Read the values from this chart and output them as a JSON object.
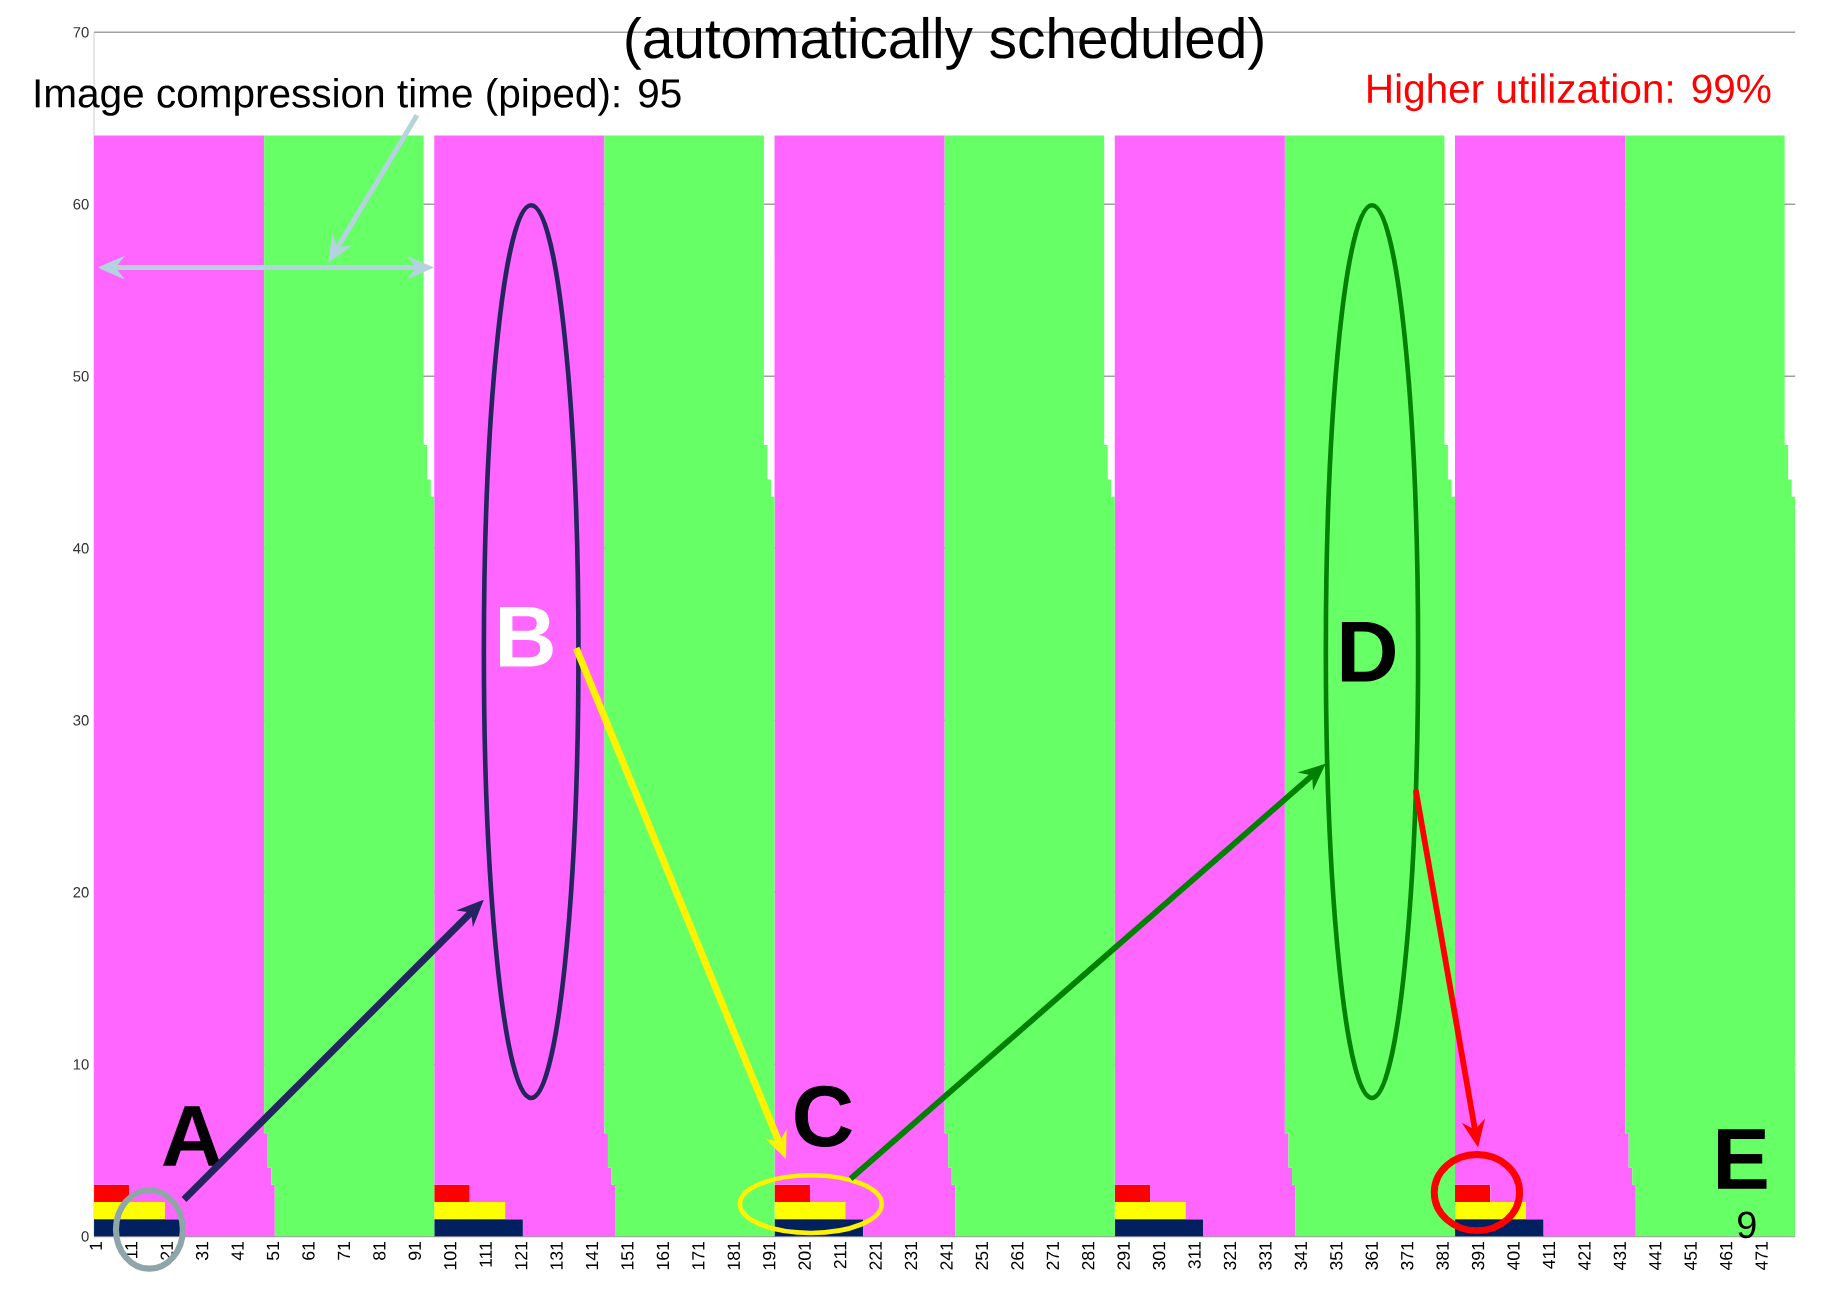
{
  "chart_data": {
    "type": "area",
    "stacked": true,
    "title": "(automatically scheduled)",
    "xlim": [
      0.5,
      480.5
    ],
    "ylim": [
      0,
      70
    ],
    "xticks": [
      1,
      11,
      21,
      31,
      41,
      51,
      61,
      71,
      81,
      91,
      101,
      111,
      121,
      131,
      141,
      151,
      161,
      171,
      181,
      191,
      201,
      211,
      221,
      231,
      241,
      251,
      261,
      271,
      281,
      291,
      301,
      311,
      321,
      331,
      341,
      351,
      361,
      371,
      381,
      391,
      401,
      411,
      421,
      431,
      441,
      451,
      461,
      471
    ],
    "yticks": [
      0,
      10,
      20,
      30,
      40,
      50,
      60,
      70
    ],
    "grid": "y",
    "x": [
      0.5,
      10.5,
      10.5,
      20.5,
      20.5,
      25.5,
      25.5,
      48.5,
      48.5,
      49.5,
      49.5,
      50.5,
      50.5,
      51.5,
      51.5,
      93.5,
      93.5,
      94.5,
      94.5,
      95.5,
      95.5,
      96.5,
      96.5,
      106.5,
      106.5,
      116.5,
      116.5,
      121.5,
      121.5,
      144.5,
      144.5,
      145.5,
      145.5,
      146.5,
      146.5,
      147.5,
      147.5,
      189.5,
      189.5,
      190.5,
      190.5,
      191.5,
      191.5,
      192.5,
      192.5,
      202.5,
      202.5,
      212.5,
      212.5,
      217.5,
      217.5,
      240.5,
      240.5,
      241.5,
      241.5,
      242.5,
      242.5,
      243.5,
      243.5,
      285.5,
      285.5,
      286.5,
      286.5,
      287.5,
      287.5,
      288.5,
      288.5,
      298.5,
      298.5,
      308.5,
      308.5,
      313.5,
      313.5,
      336.5,
      336.5,
      337.5,
      337.5,
      338.5,
      338.5,
      339.5,
      339.5,
      381.5,
      381.5,
      382.5,
      382.5,
      383.5,
      383.5,
      384.5,
      384.5,
      394.5,
      394.5,
      404.5,
      404.5,
      409.5,
      409.5,
      432.5,
      432.5,
      433.5,
      433.5,
      434.5,
      434.5,
      435.5,
      435.5,
      477.5,
      477.5,
      478.5,
      478.5,
      479.5,
      479.5,
      480.5
    ],
    "series": [
      {
        "color": "#002060",
        "values": [
          1,
          1,
          1,
          1,
          1,
          1,
          null,
          null,
          null,
          null,
          null,
          null,
          null,
          null,
          null,
          null,
          null,
          null,
          null,
          null,
          null,
          null,
          1,
          1,
          1,
          1,
          1,
          1,
          null,
          null,
          null,
          null,
          null,
          null,
          null,
          null,
          null,
          null,
          null,
          null,
          null,
          null,
          null,
          null,
          1,
          1,
          1,
          1,
          1,
          1,
          null,
          null,
          null,
          null,
          null,
          null,
          null,
          null,
          null,
          null,
          null,
          null,
          null,
          null,
          null,
          null,
          1,
          1,
          1,
          1,
          1,
          1,
          null,
          null,
          null,
          null,
          null,
          null,
          null,
          null,
          null,
          null,
          null,
          null,
          null,
          null,
          null,
          null,
          1,
          1,
          1,
          1,
          1,
          1,
          null,
          null,
          null,
          null,
          null,
          null,
          null,
          null,
          null,
          null,
          null,
          null,
          null,
          null,
          null,
          null
        ]
      },
      {
        "color": "#ffff00",
        "values": [
          1,
          1,
          1,
          1,
          null,
          null,
          null,
          null,
          null,
          null,
          null,
          null,
          null,
          null,
          null,
          null,
          null,
          null,
          null,
          null,
          null,
          null,
          1,
          1,
          1,
          1,
          null,
          null,
          null,
          null,
          null,
          null,
          null,
          null,
          null,
          null,
          null,
          null,
          null,
          null,
          null,
          null,
          null,
          null,
          1,
          1,
          1,
          1,
          null,
          null,
          null,
          null,
          null,
          null,
          null,
          null,
          null,
          null,
          null,
          null,
          null,
          null,
          null,
          null,
          null,
          null,
          1,
          1,
          1,
          1,
          null,
          null,
          null,
          null,
          null,
          null,
          null,
          null,
          null,
          null,
          null,
          null,
          null,
          null,
          null,
          null,
          null,
          null,
          1,
          1,
          1,
          1,
          null,
          null,
          null,
          null,
          null,
          null,
          null,
          null,
          null,
          null,
          null,
          null,
          null,
          null,
          null,
          null,
          null,
          null
        ]
      },
      {
        "color": "#ff0000",
        "values": [
          1,
          1,
          null,
          null,
          null,
          null,
          null,
          null,
          null,
          null,
          null,
          null,
          null,
          null,
          null,
          null,
          null,
          null,
          null,
          null,
          null,
          null,
          1,
          1,
          null,
          null,
          null,
          null,
          null,
          null,
          null,
          null,
          null,
          null,
          null,
          null,
          null,
          null,
          null,
          null,
          null,
          null,
          null,
          null,
          1,
          1,
          null,
          null,
          null,
          null,
          null,
          null,
          null,
          null,
          null,
          null,
          null,
          null,
          null,
          null,
          null,
          null,
          null,
          null,
          null,
          null,
          1,
          1,
          null,
          null,
          null,
          null,
          null,
          null,
          null,
          null,
          null,
          null,
          null,
          null,
          null,
          null,
          null,
          null,
          null,
          null,
          null,
          null,
          1,
          1,
          null,
          null,
          null,
          null,
          null,
          null,
          null,
          null,
          null,
          null,
          null,
          null,
          null,
          null,
          null,
          null,
          null,
          null,
          null,
          null
        ]
      },
      {
        "color": "#ff66ff",
        "values": [
          61,
          61,
          62,
          62,
          63,
          63,
          64,
          64,
          6,
          6,
          4,
          4,
          3,
          3,
          null,
          null,
          null,
          null,
          null,
          null,
          null,
          null,
          61,
          61,
          62,
          62,
          63,
          63,
          64,
          64,
          6,
          6,
          4,
          4,
          3,
          3,
          null,
          null,
          null,
          null,
          null,
          null,
          null,
          null,
          61,
          61,
          62,
          62,
          63,
          63,
          64,
          64,
          6,
          6,
          4,
          4,
          3,
          3,
          null,
          null,
          null,
          null,
          null,
          null,
          null,
          null,
          61,
          61,
          62,
          62,
          63,
          63,
          64,
          64,
          6,
          6,
          4,
          4,
          3,
          3,
          null,
          null,
          null,
          null,
          null,
          null,
          null,
          null,
          61,
          61,
          62,
          62,
          63,
          63,
          64,
          64,
          6,
          6,
          4,
          4,
          3,
          3,
          null,
          null,
          null,
          null,
          null,
          null,
          null,
          null
        ]
      },
      {
        "color": "#66ff66",
        "values": [
          null,
          null,
          null,
          null,
          null,
          null,
          null,
          null,
          58,
          58,
          60,
          60,
          61,
          61,
          64,
          64,
          46,
          46,
          44,
          44,
          43,
          43,
          null,
          null,
          null,
          null,
          null,
          null,
          null,
          null,
          58,
          58,
          60,
          60,
          61,
          61,
          64,
          64,
          46,
          46,
          44,
          44,
          43,
          43,
          null,
          null,
          null,
          null,
          null,
          null,
          null,
          null,
          58,
          58,
          60,
          60,
          61,
          61,
          64,
          64,
          46,
          46,
          44,
          44,
          43,
          43,
          null,
          null,
          null,
          null,
          null,
          null,
          null,
          null,
          58,
          58,
          60,
          60,
          61,
          61,
          64,
          64,
          46,
          46,
          44,
          44,
          43,
          43,
          null,
          null,
          null,
          null,
          null,
          null,
          null,
          null,
          58,
          58,
          60,
          60,
          61,
          61,
          64,
          64,
          46,
          46,
          44,
          44,
          43,
          43
        ]
      }
    ],
    "annotations": [
      "Image compression time (piped): 95",
      "Higher utilization: 99%",
      "A",
      "B",
      "C",
      "D",
      "E",
      "9"
    ]
  }
}
